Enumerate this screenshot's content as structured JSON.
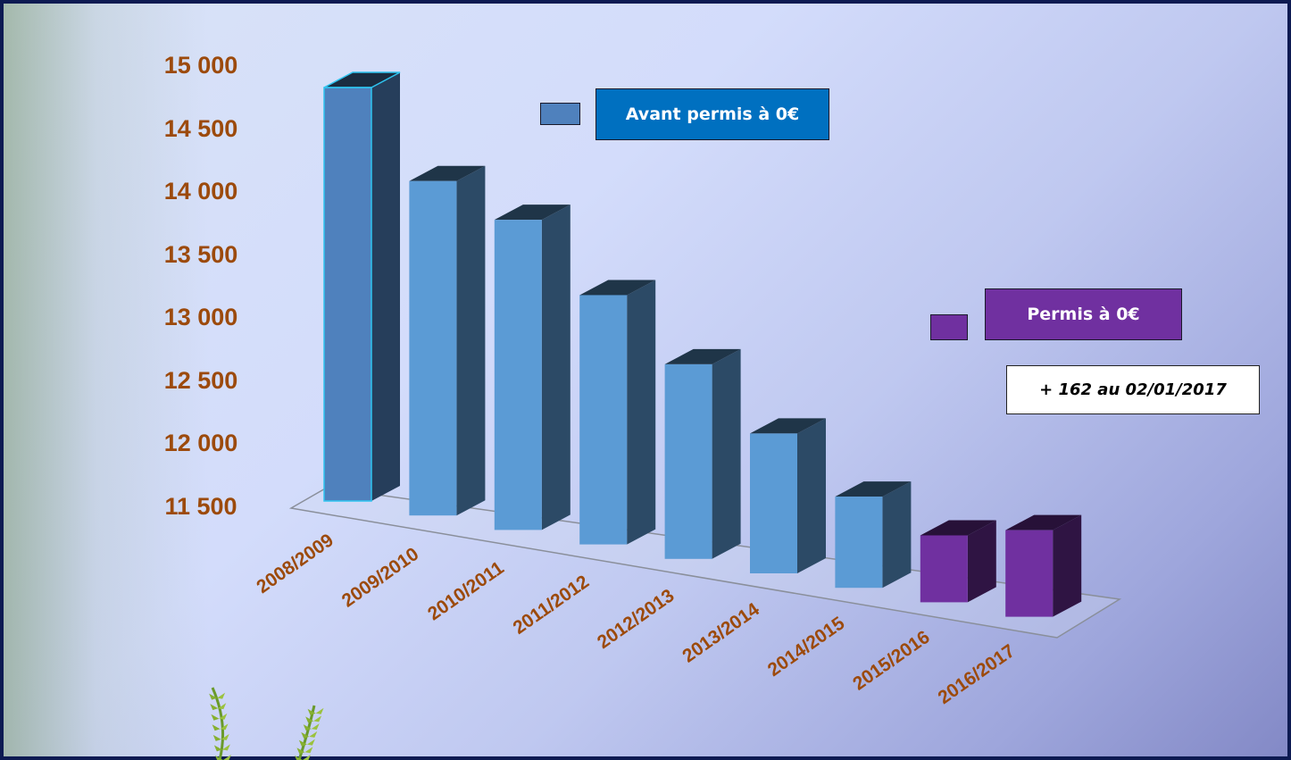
{
  "colors": {
    "before": "#5b9bd5",
    "before_first": "#4f81bd",
    "after": "#7030a0",
    "tick_labels": "#9c4a0c",
    "legend_before_bg": "#0070c0",
    "legend_after_bg": "#7030a0"
  },
  "legend": {
    "before_label": "Avant permis à 0€",
    "after_label": "Permis à 0€"
  },
  "note": "+ 162 au 02/01/2017",
  "chart_data": {
    "type": "bar",
    "categories": [
      "2008/2009",
      "2009/2010",
      "2010/2011",
      "2011/2012",
      "2012/2013",
      "2013/2014",
      "2014/2015",
      "2015/2016",
      "2016/2017"
    ],
    "values": [
      14900,
      14250,
      14050,
      13550,
      13100,
      12650,
      12250,
      12050,
      12212
    ],
    "series_group": [
      "before",
      "before",
      "before",
      "before",
      "before",
      "before",
      "before",
      "after",
      "after"
    ],
    "ylim": [
      11500,
      15000
    ],
    "yticks": [
      15000,
      14500,
      14000,
      13500,
      13000,
      12500,
      12000,
      11500
    ],
    "ytick_labels": [
      "15 000",
      "14 500",
      "14 000",
      "13 500",
      "13 000",
      "12 500",
      "12 000",
      "11 500"
    ],
    "legend_position": "top-right",
    "grid": false
  }
}
